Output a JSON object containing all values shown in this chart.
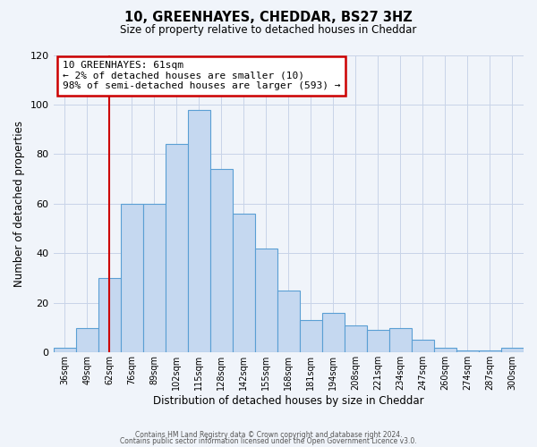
{
  "title": "10, GREENHAYES, CHEDDAR, BS27 3HZ",
  "subtitle": "Size of property relative to detached houses in Cheddar",
  "xlabel": "Distribution of detached houses by size in Cheddar",
  "ylabel": "Number of detached properties",
  "footer_line1": "Contains HM Land Registry data © Crown copyright and database right 2024.",
  "footer_line2": "Contains public sector information licensed under the Open Government Licence v3.0.",
  "bin_labels": [
    "36sqm",
    "49sqm",
    "62sqm",
    "76sqm",
    "89sqm",
    "102sqm",
    "115sqm",
    "128sqm",
    "142sqm",
    "155sqm",
    "168sqm",
    "181sqm",
    "194sqm",
    "208sqm",
    "221sqm",
    "234sqm",
    "247sqm",
    "260sqm",
    "274sqm",
    "287sqm",
    "300sqm"
  ],
  "bar_heights": [
    2,
    10,
    30,
    60,
    60,
    84,
    98,
    74,
    56,
    42,
    25,
    13,
    16,
    11,
    9,
    10,
    5,
    2,
    1,
    1,
    2
  ],
  "bar_color": "#c5d8f0",
  "bar_edge_color": "#5a9fd4",
  "annotation_label": "10 GREENHAYES: 61sqm",
  "annotation_line1": "← 2% of detached houses are smaller (10)",
  "annotation_line2": "98% of semi-detached houses are larger (593) →",
  "vline_color": "#cc0000",
  "vline_x_index": 2,
  "ylim": [
    0,
    120
  ],
  "yticks": [
    0,
    20,
    40,
    60,
    80,
    100,
    120
  ],
  "annotation_box_edge_color": "#cc0000",
  "background_color": "#f0f4fa",
  "grid_color": "#c8d4e8"
}
